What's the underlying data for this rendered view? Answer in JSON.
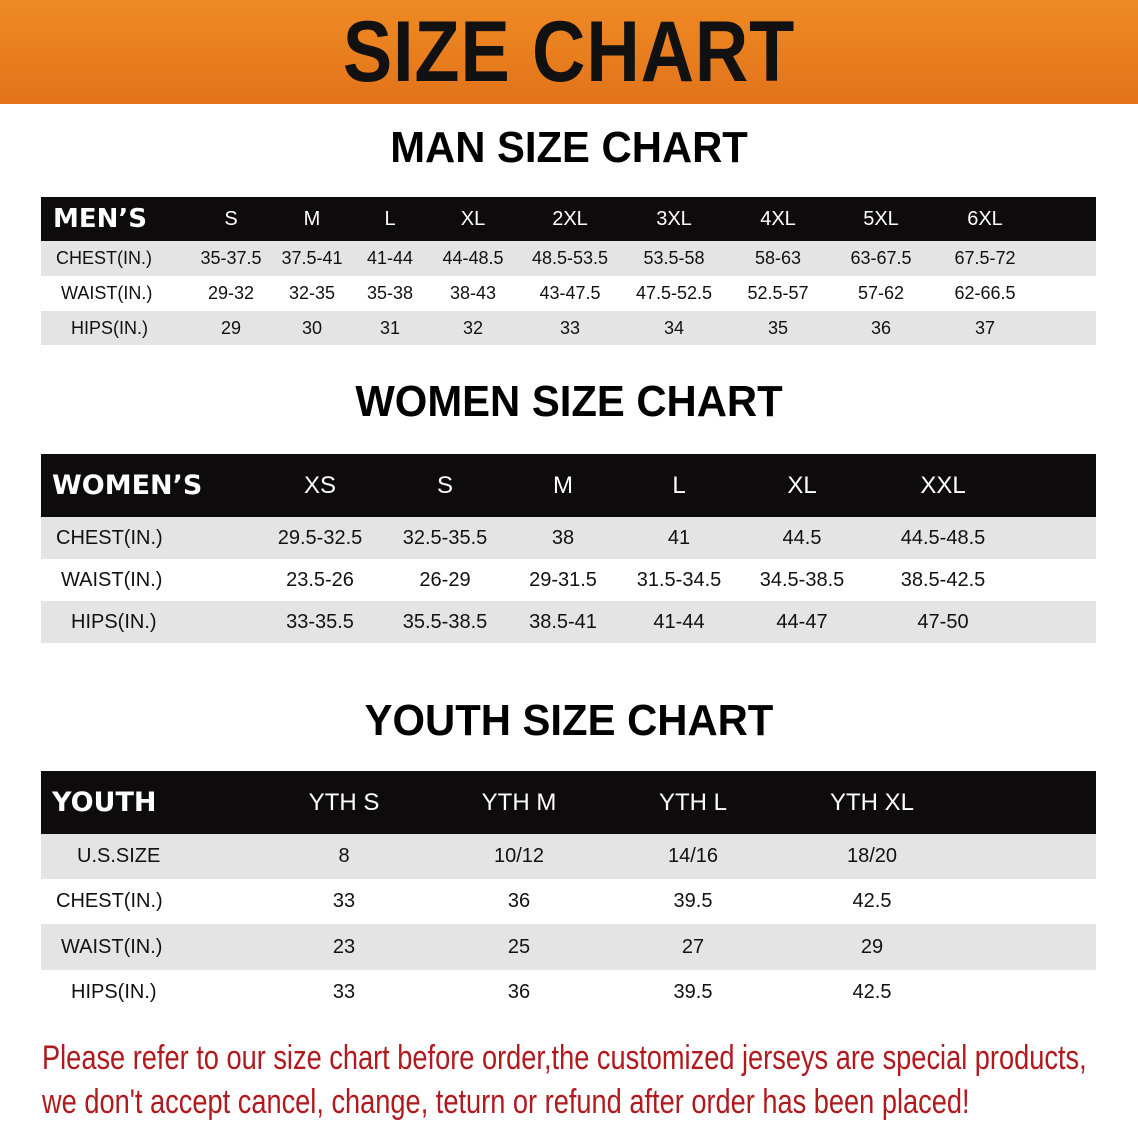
{
  "banner": {
    "title": "SIZE CHART",
    "color": "#E97D1F"
  },
  "men": {
    "title": "MAN SIZE CHART",
    "header": "MEN’S",
    "sizes": [
      "S",
      "M",
      "L",
      "XL",
      "2XL",
      "3XL",
      "4XL",
      "5XL",
      "6XL"
    ],
    "rows": [
      {
        "label": "CHEST(IN.)",
        "values": [
          "35-37.5",
          "37.5-41",
          "41-44",
          "44-48.5",
          "48.5-53.5",
          "53.5-58",
          "58-63",
          "63-67.5",
          "67.5-72"
        ]
      },
      {
        "label": "WAIST(IN.)",
        "values": [
          "29-32",
          "32-35",
          "35-38",
          "38-43",
          "43-47.5",
          "47.5-52.5",
          "52.5-57",
          "57-62",
          "62-66.5"
        ]
      },
      {
        "label": "HIPS(IN.)",
        "values": [
          "29",
          "30",
          "31",
          "32",
          "33",
          "34",
          "35",
          "36",
          "37"
        ]
      }
    ]
  },
  "women": {
    "title": "WOMEN SIZE CHART",
    "header": "WOMEN’S",
    "sizes": [
      "XS",
      "S",
      "M",
      "L",
      "XL",
      "XXL"
    ],
    "rows": [
      {
        "label": "CHEST(IN.)",
        "values": [
          "29.5-32.5",
          "32.5-35.5",
          "38",
          "41",
          "44.5",
          "44.5-48.5"
        ]
      },
      {
        "label": "WAIST(IN.)",
        "values": [
          "23.5-26",
          "26-29",
          "29-31.5",
          "31.5-34.5",
          "34.5-38.5",
          "38.5-42.5"
        ]
      },
      {
        "label": "HIPS(IN.)",
        "values": [
          "33-35.5",
          "35.5-38.5",
          "38.5-41",
          "41-44",
          "44-47",
          "47-50"
        ]
      }
    ]
  },
  "youth": {
    "title": "YOUTH SIZE CHART",
    "header": "YOUTH",
    "sizes": [
      "YTH S",
      "YTH M",
      "YTH L",
      "YTH XL"
    ],
    "rows": [
      {
        "label": "U.S.SIZE",
        "values": [
          "8",
          "10/12",
          "14/16",
          "18/20"
        ]
      },
      {
        "label": "CHEST(IN.)",
        "values": [
          "33",
          "36",
          "39.5",
          "42.5"
        ]
      },
      {
        "label": "WAIST(IN.)",
        "values": [
          "23",
          "25",
          "27",
          "29"
        ]
      },
      {
        "label": "HIPS(IN.)",
        "values": [
          "33",
          "36",
          "39.5",
          "42.5"
        ]
      }
    ]
  },
  "notice": {
    "line1": "Please refer to our size chart before order,the customized jerseys are special products,",
    "line2": "we don't accept cancel, change, teturn or refund after order has been placed!",
    "color": "#B01A1E"
  }
}
